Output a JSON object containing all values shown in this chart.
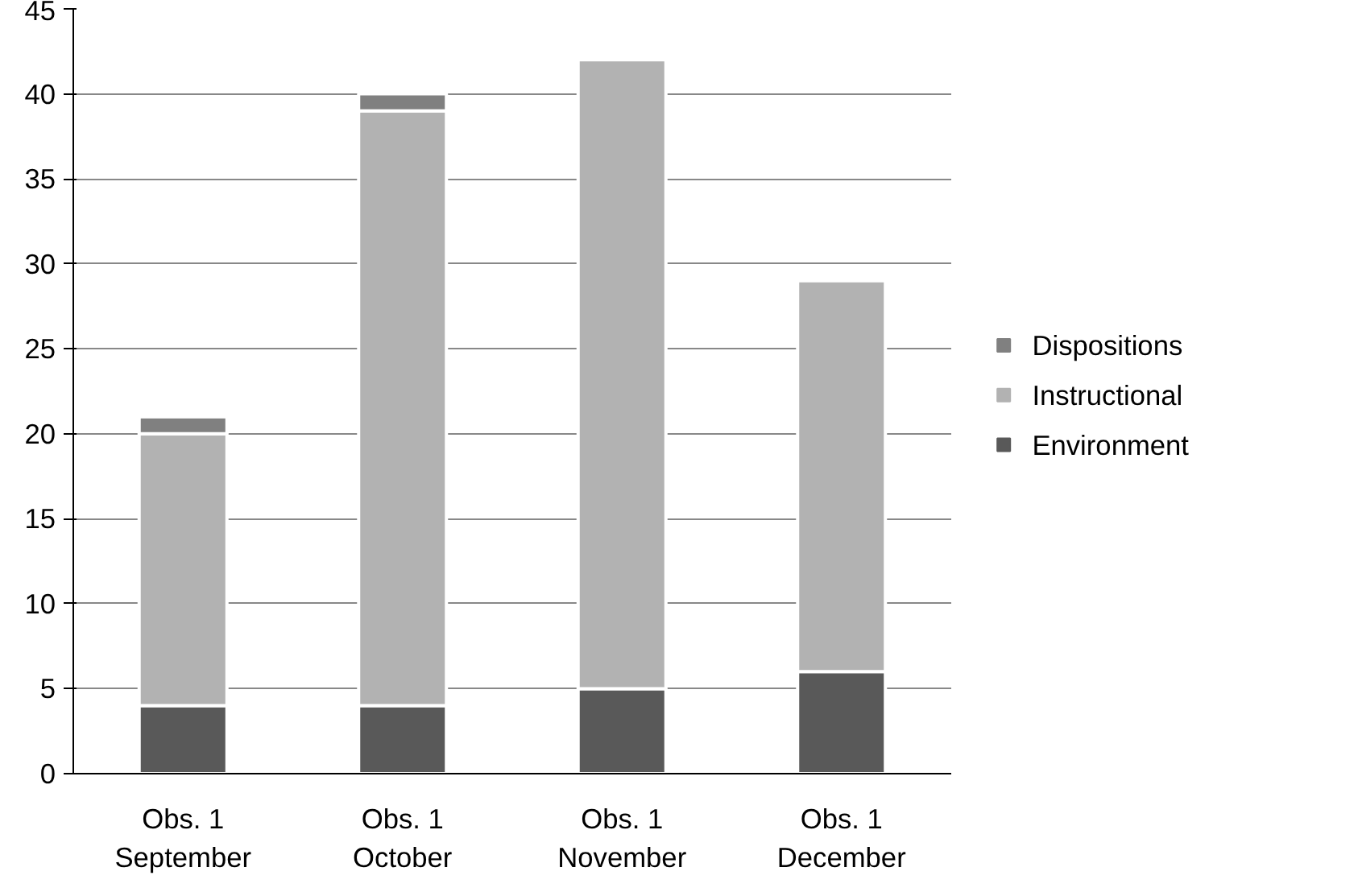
{
  "chart_data": {
    "type": "bar",
    "stacked": true,
    "categories": [
      "Obs. 1\nSeptember",
      "Obs. 1\nOctober",
      "Obs. 1\nNovember",
      "Obs. 1\nDecember"
    ],
    "series": [
      {
        "name": "Environment",
        "color": "#595959",
        "values": [
          4,
          4,
          5,
          6
        ]
      },
      {
        "name": "Instructional",
        "color": "#b2b2b2",
        "values": [
          16,
          35,
          37,
          23
        ]
      },
      {
        "name": "Dispositions",
        "color": "#808080",
        "values": [
          1,
          1,
          0,
          0
        ]
      }
    ],
    "ylim": [
      0,
      45
    ],
    "yticks": [
      0,
      5,
      10,
      15,
      20,
      25,
      30,
      35,
      40,
      45
    ],
    "grid": "y",
    "legend": "right"
  }
}
